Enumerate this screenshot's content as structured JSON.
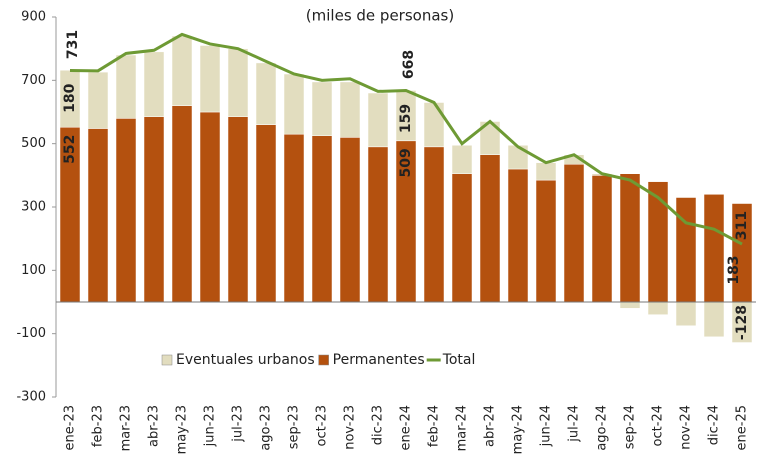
{
  "chart_data": {
    "type": "stacked-bar-line",
    "title": "(miles de personas)",
    "categories": [
      "ene-23",
      "feb-23",
      "mar-23",
      "abr-23",
      "may-23",
      "jun-23",
      "jul-23",
      "ago-23",
      "sep-23",
      "oct-23",
      "nov-23",
      "dic-23",
      "ene-24",
      "feb-24",
      "mar-24",
      "abr-24",
      "may-24",
      "jun-24",
      "jul-24",
      "ago-24",
      "sep-24",
      "oct-24",
      "nov-24",
      "dic-24",
      "ene-25"
    ],
    "series": [
      {
        "name": "Eventuales urbanos",
        "type": "bar",
        "color": "#e2ddbf",
        "values": [
          180,
          178,
          200,
          205,
          220,
          210,
          215,
          195,
          190,
          170,
          175,
          170,
          159,
          140,
          90,
          105,
          75,
          55,
          30,
          5,
          -20,
          -40,
          -75,
          -110,
          -128
        ]
      },
      {
        "name": "Permanentes",
        "type": "bar",
        "color": "#b4510f",
        "values": [
          552,
          548,
          580,
          585,
          620,
          600,
          585,
          560,
          530,
          525,
          520,
          490,
          509,
          490,
          405,
          465,
          420,
          385,
          435,
          400,
          405,
          380,
          330,
          340,
          311
        ]
      },
      {
        "name": "Total",
        "type": "line",
        "color": "#6e9a34",
        "values": [
          731,
          730,
          785,
          795,
          845,
          815,
          800,
          760,
          720,
          700,
          705,
          665,
          668,
          630,
          500,
          570,
          490,
          440,
          465,
          405,
          385,
          330,
          250,
          230,
          183
        ]
      }
    ],
    "label_indices": [
      0,
      12,
      24
    ],
    "ylim": [
      -300,
      900
    ],
    "yticks": [
      -300,
      -100,
      100,
      300,
      500,
      700,
      900
    ],
    "legend": "bottom"
  }
}
